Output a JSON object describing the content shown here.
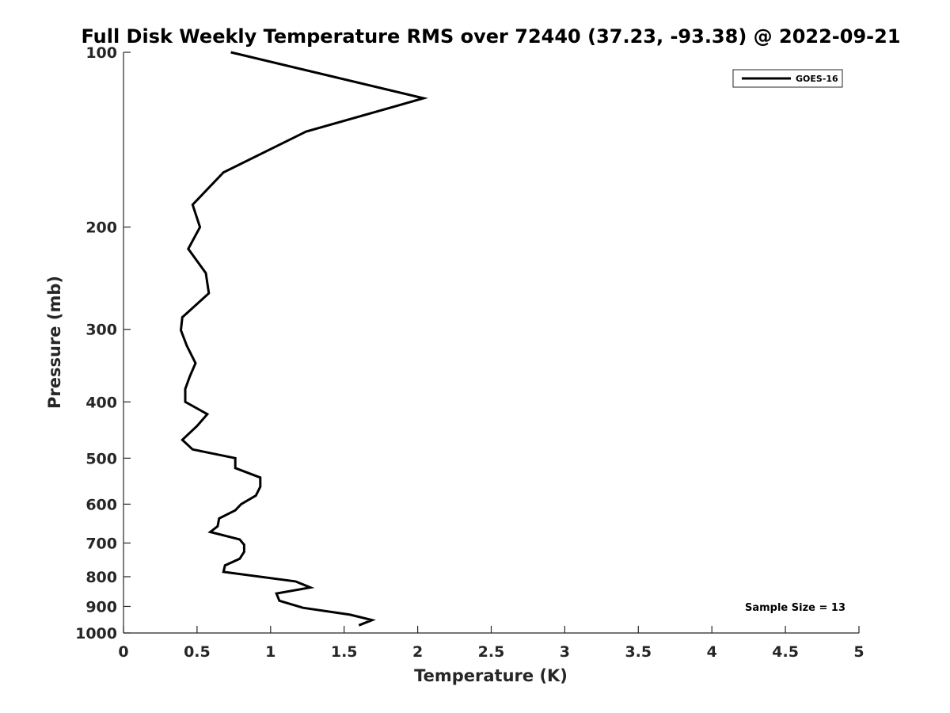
{
  "chart_data": {
    "type": "line",
    "title": "Full Disk Weekly Temperature RMS over 72440 (37.23, -93.38) @ 2022-09-21",
    "xlabel": "Temperature (K)",
    "ylabel": "Pressure (mb)",
    "xlim": [
      0,
      5
    ],
    "ylim": [
      100,
      1000
    ],
    "y_scale": "log",
    "y_reversed": true,
    "x_ticks": [
      0,
      0.5,
      1,
      1.5,
      2,
      2.5,
      3,
      3.5,
      4,
      4.5,
      5
    ],
    "x_tick_labels": [
      "0",
      "0.5",
      "1",
      "1.5",
      "2",
      "2.5",
      "3",
      "3.5",
      "4",
      "4.5",
      "5"
    ],
    "y_ticks": [
      100,
      200,
      300,
      400,
      500,
      600,
      700,
      800,
      900,
      1000
    ],
    "y_tick_labels": [
      "100",
      "200",
      "300",
      "400",
      "500",
      "600",
      "700",
      "800",
      "900",
      "1000"
    ],
    "grid": false,
    "legend_position": "top-right",
    "series": [
      {
        "name": "GOES-16",
        "color": "#000000",
        "x": [
          0.73,
          2.04,
          1.24,
          0.68,
          0.47,
          0.52,
          0.44,
          0.56,
          0.58,
          0.4,
          0.39,
          0.43,
          0.49,
          0.45,
          0.42,
          0.42,
          0.57,
          0.5,
          0.4,
          0.47,
          0.76,
          0.76,
          0.93,
          0.93,
          0.9,
          0.8,
          0.76,
          0.65,
          0.64,
          0.59,
          0.79,
          0.82,
          0.82,
          0.79,
          0.69,
          0.68,
          1.17,
          1.27,
          1.04,
          1.06,
          1.22,
          1.54,
          1.69,
          1.6
        ],
        "y": [
          100,
          120,
          137,
          161,
          183,
          200,
          218,
          240,
          260,
          286,
          301,
          320,
          343,
          362,
          380,
          400,
          420,
          440,
          465,
          483,
          500,
          520,
          540,
          560,
          580,
          600,
          615,
          635,
          655,
          670,
          690,
          705,
          725,
          745,
          765,
          785,
          815,
          835,
          855,
          880,
          905,
          930,
          950,
          970
        ]
      }
    ],
    "annotations": [
      "Sample Size = 13"
    ]
  }
}
